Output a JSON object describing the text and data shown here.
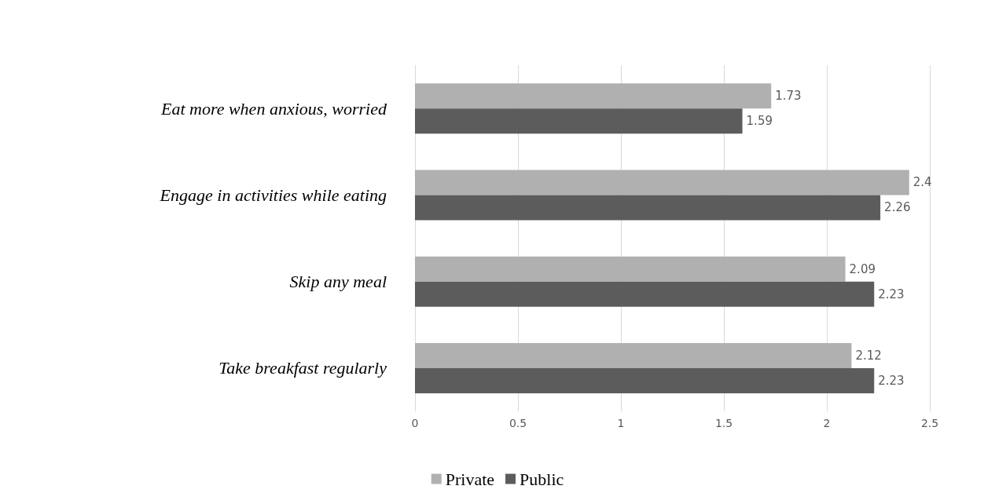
{
  "chart_data": {
    "type": "bar",
    "orientation": "horizontal",
    "categories": [
      "Eat more when anxious, worried",
      "Engage in activities while eating",
      "Skip any meal",
      "Take breakfast regularly"
    ],
    "series": [
      {
        "name": "Private",
        "color": "#b0b0b0",
        "values": [
          1.73,
          2.4,
          2.09,
          2.12
        ]
      },
      {
        "name": "Public",
        "color": "#5c5c5c",
        "values": [
          1.59,
          2.26,
          2.23,
          2.23
        ]
      }
    ],
    "xlim": [
      0,
      2.5
    ],
    "xticks": [
      0,
      0.5,
      1,
      1.5,
      2,
      2.5
    ],
    "grid": "x",
    "legend": "bottom",
    "data_labels": true
  }
}
